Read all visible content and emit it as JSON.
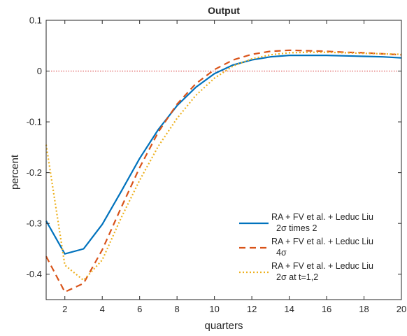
{
  "chart_data": {
    "type": "line",
    "title": "Output",
    "xlabel": "quarters",
    "ylabel": "percent",
    "xlim": [
      1,
      20
    ],
    "ylim": [
      -0.45,
      0.1
    ],
    "xticks": [
      2,
      4,
      6,
      8,
      10,
      12,
      14,
      16,
      18,
      20
    ],
    "xtick_labels": [
      "2",
      "4",
      "6",
      "8",
      "10",
      "12",
      "14",
      "16",
      "18",
      "20"
    ],
    "yticks": [
      0.1,
      0,
      -0.1,
      -0.2,
      -0.3,
      -0.4
    ],
    "ytick_labels": [
      "0.1",
      "0",
      "-0.1",
      "-0.2",
      "-0.3",
      "-0.4"
    ],
    "grid": false,
    "legend_position": "bottom-right",
    "zero_line": {
      "y": 0,
      "color": "#d62728",
      "style": "dotted"
    },
    "x": [
      1,
      2,
      3,
      4,
      5,
      6,
      7,
      8,
      9,
      10,
      11,
      12,
      13,
      14,
      15,
      16,
      17,
      18,
      19,
      20
    ],
    "series": [
      {
        "name_line1": "RA + FV et al. + Leduc Liu",
        "name_line2": "2σ times 2",
        "color": "#0072BD",
        "style": "solid",
        "values": [
          -0.295,
          -0.36,
          -0.35,
          -0.302,
          -0.238,
          -0.172,
          -0.115,
          -0.068,
          -0.032,
          -0.005,
          0.012,
          0.022,
          0.028,
          0.031,
          0.031,
          0.031,
          0.03,
          0.029,
          0.028,
          0.026
        ]
      },
      {
        "name_line1": "RA + FV et al. + Leduc Liu",
        "name_line2": "4σ",
        "color": "#D95319",
        "style": "dashed",
        "values": [
          -0.365,
          -0.435,
          -0.418,
          -0.352,
          -0.27,
          -0.19,
          -0.12,
          -0.065,
          -0.025,
          0.003,
          0.022,
          0.033,
          0.039,
          0.041,
          0.04,
          0.039,
          0.037,
          0.036,
          0.034,
          0.032
        ]
      },
      {
        "name_line1": "RA + FV et al. + Leduc Liu",
        "name_line2": "2σ at t=1,2",
        "color": "#EDB120",
        "style": "dotted",
        "values": [
          -0.145,
          -0.382,
          -0.412,
          -0.372,
          -0.29,
          -0.215,
          -0.148,
          -0.093,
          -0.048,
          -0.014,
          0.01,
          0.024,
          0.032,
          0.036,
          0.037,
          0.037,
          0.036,
          0.035,
          0.034,
          0.033
        ]
      }
    ]
  }
}
